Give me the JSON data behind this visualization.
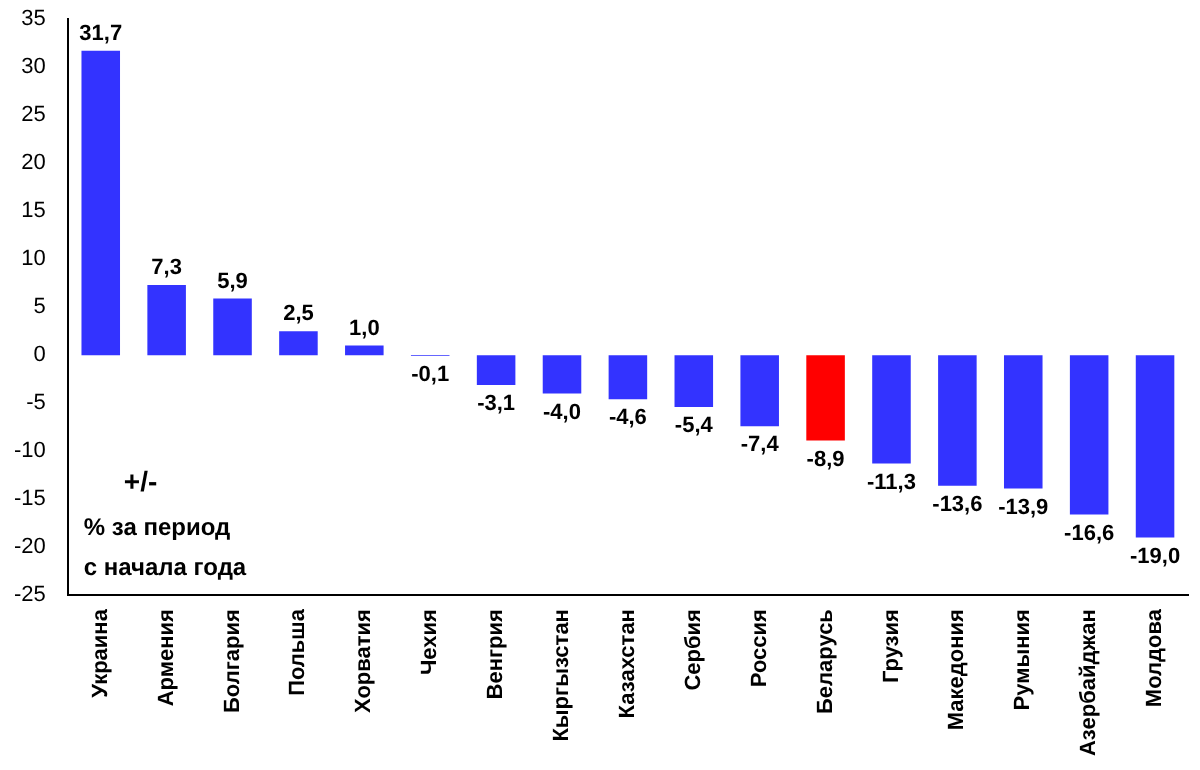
{
  "chart_data": {
    "type": "bar",
    "categories": [
      "Украина",
      "Армения",
      "Болгария",
      "Польша",
      "Хорватия",
      "Чехия",
      "Венгрия",
      "Кыргызстан",
      "Казахстан",
      "Сербия",
      "Россия",
      "Беларусь",
      "Грузия",
      "Македония",
      "Румыния",
      "Азербайджан",
      "Молдова"
    ],
    "values": [
      31.7,
      7.3,
      5.9,
      2.5,
      1.0,
      -0.1,
      -3.1,
      -4.0,
      -4.6,
      -5.4,
      -7.4,
      -8.9,
      -11.3,
      -13.6,
      -13.9,
      -16.6,
      -19.0
    ],
    "colors": [
      "#3333ff",
      "#3333ff",
      "#3333ff",
      "#3333ff",
      "#3333ff",
      "#3333ff",
      "#3333ff",
      "#3333ff",
      "#3333ff",
      "#3333ff",
      "#3333ff",
      "#ff0000",
      "#3333ff",
      "#3333ff",
      "#3333ff",
      "#3333ff",
      "#3333ff"
    ],
    "value_labels": [
      "31,7",
      "7,3",
      "5,9",
      "2,5",
      "1,0",
      "-0,1",
      "-3,1",
      "-4,0",
      "-4,6",
      "-5,4",
      "-7,4",
      "-8,9",
      "-11,3",
      "-13,6",
      "-13,9",
      "-16,6",
      "-19,0"
    ],
    "ylim": [
      -25,
      35
    ],
    "yticks": [
      -25,
      -20,
      -15,
      -10,
      -5,
      0,
      5,
      10,
      15,
      20,
      25,
      30,
      35
    ],
    "grid": false,
    "legend": false,
    "annotations": [
      "+/-",
      "% за период",
      "с начала года"
    ]
  }
}
